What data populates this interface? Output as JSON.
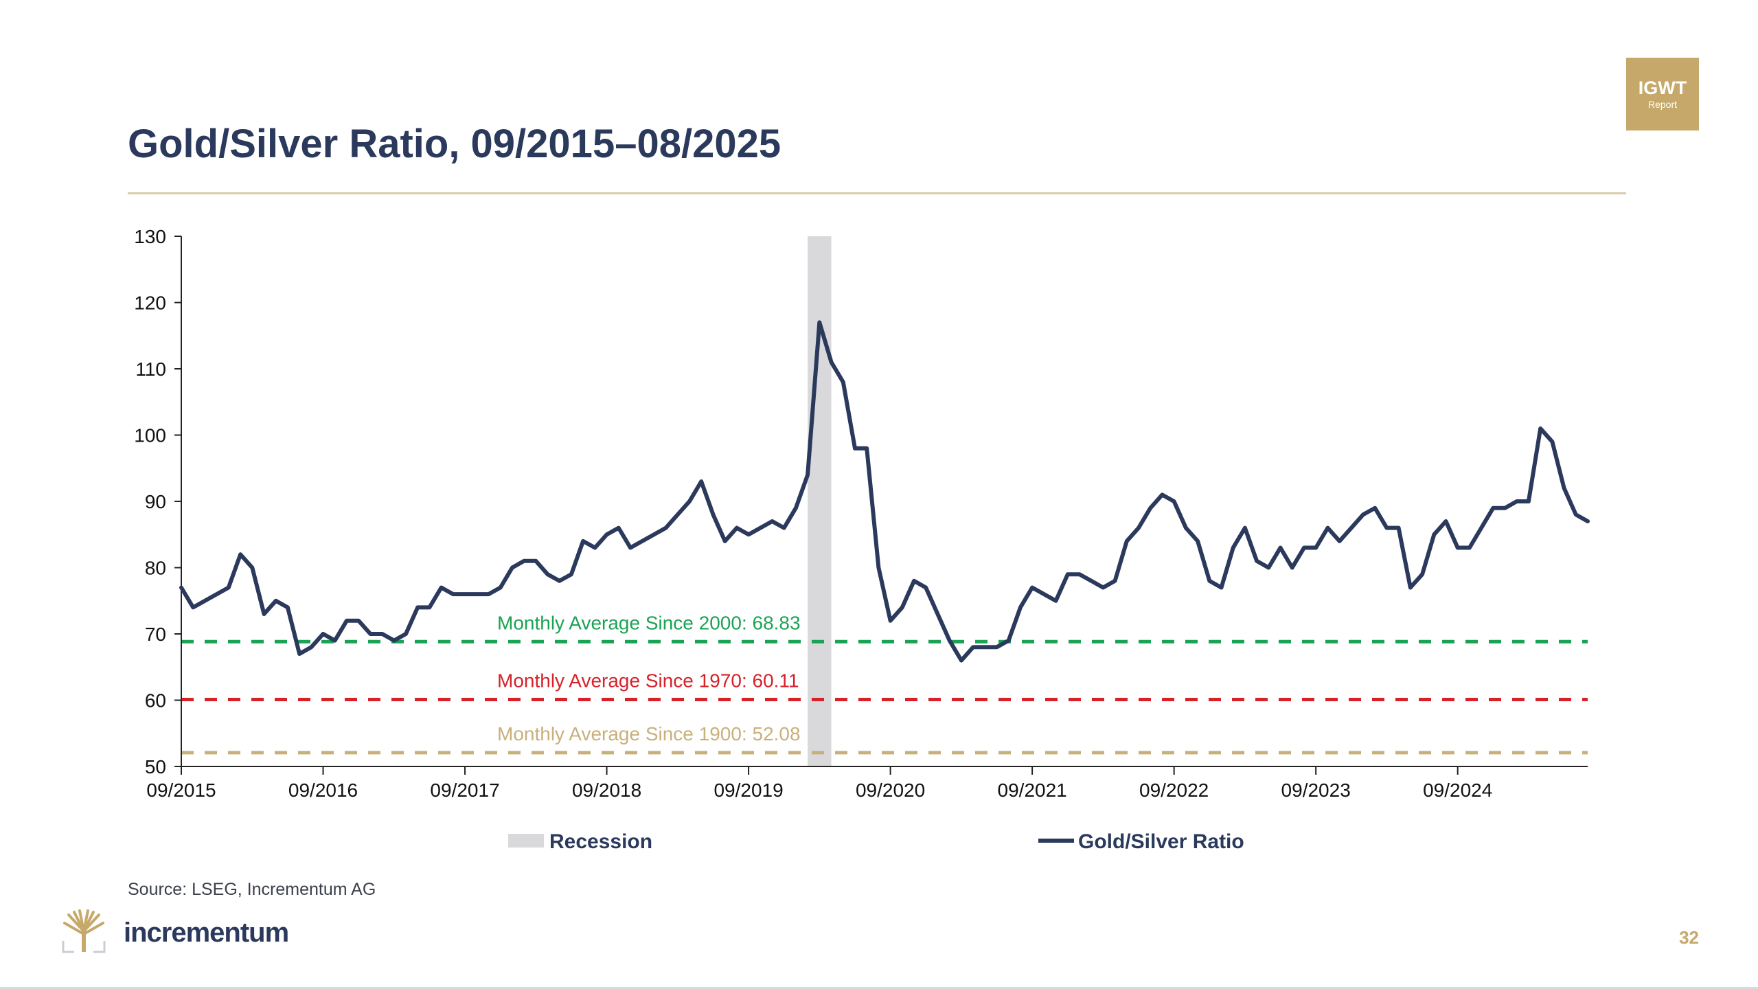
{
  "slide": {
    "title": "Gold/Silver Ratio, 09/2015–08/2025",
    "badge_line1": "IGWT",
    "badge_line2": "Report",
    "source": "Source: LSEG, Incrementum AG",
    "logo_text": "incrementum",
    "page_number": "32",
    "colors": {
      "title": "#2b3a5c",
      "accent_gold": "#c6a96a",
      "series": "#2b3a5c",
      "avg_2000": "#1aa354",
      "avg_1970": "#d7222a",
      "avg_1900": "#c9b07a",
      "recession": "#d9d9dc"
    }
  },
  "chart_data": {
    "type": "line",
    "title": "",
    "xlabel": "",
    "ylabel": "",
    "x_start": "09/2015",
    "x_end": "08/2025",
    "ylim": [
      50,
      130
    ],
    "yticks": [
      50,
      60,
      70,
      80,
      90,
      100,
      110,
      120,
      130
    ],
    "xtick_labels": [
      "09/2015",
      "09/2016",
      "09/2017",
      "09/2018",
      "09/2019",
      "09/2020",
      "09/2021",
      "09/2022",
      "09/2023",
      "09/2024"
    ],
    "grid": false,
    "legend_position": "bottom",
    "legend": [
      {
        "label": "Recession",
        "kind": "area"
      },
      {
        "label": "Gold/Silver Ratio",
        "kind": "line"
      }
    ],
    "recession": {
      "start": "2020-02",
      "end": "2020-04"
    },
    "reference_lines": [
      {
        "label": "Monthly Average Since 2000: 68.83",
        "value": 68.83,
        "color": "#1aa354"
      },
      {
        "label": "Monthly Average Since 1970: 60.11",
        "value": 60.11,
        "color": "#d7222a"
      },
      {
        "label": "Monthly Average Since 1900: 52.08",
        "value": 52.08,
        "color": "#c9b07a"
      }
    ],
    "series": [
      {
        "name": "Gold/Silver Ratio",
        "color": "#2b3a5c",
        "points": [
          [
            "2015-09",
            77
          ],
          [
            "2015-10",
            74
          ],
          [
            "2015-11",
            75
          ],
          [
            "2015-12",
            76
          ],
          [
            "2016-01",
            77
          ],
          [
            "2016-02",
            82
          ],
          [
            "2016-03",
            80
          ],
          [
            "2016-04",
            73
          ],
          [
            "2016-05",
            75
          ],
          [
            "2016-06",
            74
          ],
          [
            "2016-07",
            67
          ],
          [
            "2016-08",
            68
          ],
          [
            "2016-09",
            70
          ],
          [
            "2016-10",
            69
          ],
          [
            "2016-11",
            72
          ],
          [
            "2016-12",
            72
          ],
          [
            "2017-01",
            70
          ],
          [
            "2017-02",
            70
          ],
          [
            "2017-03",
            69
          ],
          [
            "2017-04",
            70
          ],
          [
            "2017-05",
            74
          ],
          [
            "2017-06",
            74
          ],
          [
            "2017-07",
            77
          ],
          [
            "2017-08",
            76
          ],
          [
            "2017-09",
            76
          ],
          [
            "2017-10",
            76
          ],
          [
            "2017-11",
            76
          ],
          [
            "2017-12",
            77
          ],
          [
            "2018-01",
            80
          ],
          [
            "2018-02",
            81
          ],
          [
            "2018-03",
            81
          ],
          [
            "2018-04",
            79
          ],
          [
            "2018-05",
            78
          ],
          [
            "2018-06",
            79
          ],
          [
            "2018-07",
            84
          ],
          [
            "2018-08",
            83
          ],
          [
            "2018-09",
            85
          ],
          [
            "2018-10",
            86
          ],
          [
            "2018-11",
            83
          ],
          [
            "2018-12",
            84
          ],
          [
            "2019-01",
            85
          ],
          [
            "2019-02",
            86
          ],
          [
            "2019-03",
            88
          ],
          [
            "2019-04",
            90
          ],
          [
            "2019-05",
            93
          ],
          [
            "2019-06",
            88
          ],
          [
            "2019-07",
            84
          ],
          [
            "2019-08",
            86
          ],
          [
            "2019-09",
            85
          ],
          [
            "2019-10",
            86
          ],
          [
            "2019-11",
            87
          ],
          [
            "2019-12",
            86
          ],
          [
            "2020-01",
            89
          ],
          [
            "2020-02",
            94
          ],
          [
            "2020-03",
            117
          ],
          [
            "2020-04",
            111
          ],
          [
            "2020-05",
            108
          ],
          [
            "2020-06",
            98
          ],
          [
            "2020-07",
            98
          ],
          [
            "2020-08",
            80
          ],
          [
            "2020-09",
            72
          ],
          [
            "2020-10",
            74
          ],
          [
            "2020-11",
            78
          ],
          [
            "2020-12",
            77
          ],
          [
            "2021-01",
            73
          ],
          [
            "2021-02",
            69
          ],
          [
            "2021-03",
            66
          ],
          [
            "2021-04",
            68
          ],
          [
            "2021-05",
            68
          ],
          [
            "2021-06",
            68
          ],
          [
            "2021-07",
            69
          ],
          [
            "2021-08",
            74
          ],
          [
            "2021-09",
            77
          ],
          [
            "2021-10",
            76
          ],
          [
            "2021-11",
            75
          ],
          [
            "2021-12",
            79
          ],
          [
            "2022-01",
            79
          ],
          [
            "2022-02",
            78
          ],
          [
            "2022-03",
            77
          ],
          [
            "2022-04",
            78
          ],
          [
            "2022-05",
            84
          ],
          [
            "2022-06",
            86
          ],
          [
            "2022-07",
            89
          ],
          [
            "2022-08",
            91
          ],
          [
            "2022-09",
            90
          ],
          [
            "2022-10",
            86
          ],
          [
            "2022-11",
            84
          ],
          [
            "2022-12",
            78
          ],
          [
            "2023-01",
            77
          ],
          [
            "2023-02",
            83
          ],
          [
            "2023-03",
            86
          ],
          [
            "2023-04",
            81
          ],
          [
            "2023-05",
            80
          ],
          [
            "2023-06",
            83
          ],
          [
            "2023-07",
            80
          ],
          [
            "2023-08",
            83
          ],
          [
            "2023-09",
            83
          ],
          [
            "2023-10",
            86
          ],
          [
            "2023-11",
            84
          ],
          [
            "2023-12",
            86
          ],
          [
            "2024-01",
            88
          ],
          [
            "2024-02",
            89
          ],
          [
            "2024-03",
            86
          ],
          [
            "2024-04",
            86
          ],
          [
            "2024-05",
            77
          ],
          [
            "2024-06",
            79
          ],
          [
            "2024-07",
            85
          ],
          [
            "2024-08",
            87
          ],
          [
            "2024-09",
            83
          ],
          [
            "2024-10",
            83
          ],
          [
            "2024-11",
            86
          ],
          [
            "2024-12",
            89
          ],
          [
            "2025-01",
            89
          ],
          [
            "2025-02",
            90
          ],
          [
            "2025-03",
            90
          ],
          [
            "2025-04",
            101
          ],
          [
            "2025-05",
            99
          ],
          [
            "2025-06",
            92
          ],
          [
            "2025-07",
            88
          ],
          [
            "2025-08",
            87
          ]
        ]
      }
    ]
  }
}
